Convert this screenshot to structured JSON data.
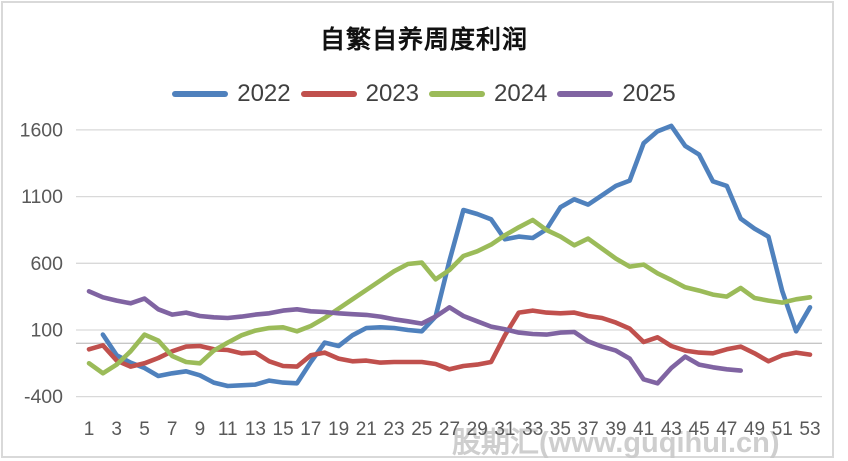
{
  "header": {
    "title": "自繁自养周度利润"
  },
  "watermark": "股期汇(www.guqihui.cn)",
  "legend": [
    {
      "label": "2022",
      "color": "#4F81BD"
    },
    {
      "label": "2023",
      "color": "#C0504D"
    },
    {
      "label": "2024",
      "color": "#9BBB59"
    },
    {
      "label": "2025",
      "color": "#8064A2"
    }
  ],
  "chart_data": {
    "type": "line",
    "title": "自繁自养周度利润",
    "xlabel": "",
    "ylabel": "",
    "x": "week number 1-53",
    "xticks": [
      1,
      3,
      5,
      7,
      9,
      11,
      13,
      15,
      17,
      19,
      21,
      23,
      25,
      27,
      29,
      31,
      33,
      35,
      37,
      39,
      41,
      43,
      45,
      47,
      49,
      51,
      53
    ],
    "yticks": [
      1600,
      1100,
      600,
      100,
      -400
    ],
    "ylim": [
      -400,
      1700
    ],
    "grid": true,
    "zero_axis_line": true,
    "legend_position": "top",
    "axis_text_color": "#595959",
    "grid_color": "#d9d9d9",
    "series": [
      {
        "name": "2022",
        "color": "#4F81BD",
        "values": [
          null,
          65,
          -90,
          -145,
          -185,
          -245,
          -225,
          -210,
          -240,
          -295,
          -320,
          -315,
          -310,
          -280,
          -295,
          -300,
          -140,
          5,
          -20,
          60,
          115,
          120,
          115,
          100,
          90,
          200,
          620,
          1000,
          970,
          930,
          780,
          800,
          790,
          855,
          1020,
          1080,
          1040,
          1110,
          1180,
          1220,
          1500,
          1590,
          1630,
          1480,
          1415,
          1215,
          1180,
          935,
          860,
          800,
          390,
          90,
          270
        ]
      },
      {
        "name": "2023",
        "color": "#C0504D",
        "values": [
          -45,
          -15,
          -130,
          -175,
          -150,
          -110,
          -60,
          -25,
          -20,
          -45,
          -50,
          -75,
          -70,
          -135,
          -170,
          -175,
          -90,
          -70,
          -115,
          -135,
          -130,
          -145,
          -140,
          -140,
          -140,
          -155,
          -195,
          -170,
          -160,
          -140,
          60,
          230,
          245,
          230,
          225,
          230,
          205,
          190,
          155,
          110,
          10,
          45,
          -20,
          -55,
          -70,
          -75,
          -45,
          -25,
          -75,
          -135,
          -90,
          -70,
          -85
        ]
      },
      {
        "name": "2024",
        "color": "#9BBB59",
        "values": [
          -150,
          -225,
          -160,
          -60,
          65,
          20,
          -95,
          -140,
          -150,
          -55,
          5,
          60,
          95,
          115,
          120,
          90,
          130,
          190,
          260,
          330,
          400,
          470,
          540,
          595,
          605,
          480,
          550,
          655,
          690,
          740,
          810,
          870,
          925,
          850,
          800,
          735,
          785,
          710,
          635,
          575,
          590,
          525,
          475,
          420,
          395,
          365,
          350,
          415,
          340,
          320,
          305,
          330,
          345
        ]
      },
      {
        "name": "2025",
        "color": "#8064A2",
        "values": [
          390,
          345,
          320,
          300,
          335,
          255,
          215,
          230,
          205,
          195,
          190,
          200,
          215,
          225,
          245,
          255,
          240,
          235,
          225,
          218,
          213,
          200,
          180,
          165,
          148,
          200,
          270,
          205,
          165,
          125,
          105,
          80,
          70,
          65,
          80,
          85,
          15,
          -25,
          -55,
          -115,
          -270,
          -300,
          -185,
          -100,
          -160,
          -180,
          -195,
          -205,
          null,
          null,
          null,
          null,
          null
        ]
      }
    ]
  }
}
